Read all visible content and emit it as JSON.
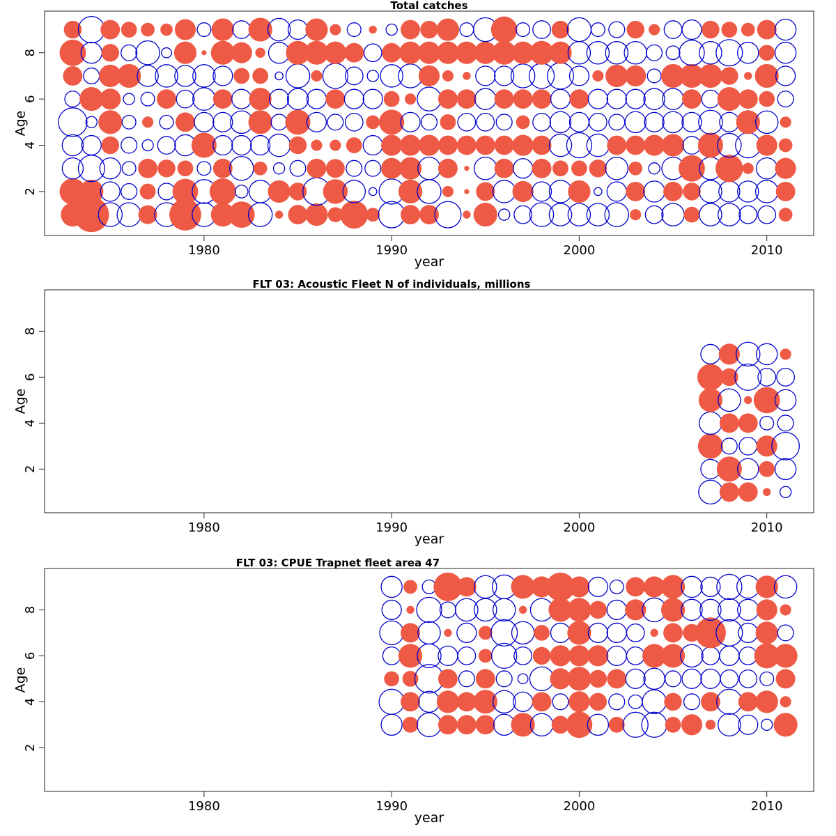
{
  "colors": {
    "positive": "#EE5A45",
    "negative": "#0000CC"
  },
  "chart_data": [
    {
      "type": "scatter",
      "subtype": "bubble",
      "title": "Total catches",
      "xlabel": "year",
      "ylabel": "Age",
      "x_ticks": [
        1980,
        1990,
        2000,
        2010
      ],
      "y_ticks": [
        2,
        4,
        6,
        8
      ],
      "xlim": [
        1971.5,
        2012.5
      ],
      "ylim": [
        0.1,
        9.8
      ],
      "x": [
        1973,
        1974,
        1975,
        1976,
        1977,
        1978,
        1979,
        1980,
        1981,
        1982,
        1983,
        1984,
        1985,
        1986,
        1987,
        1988,
        1989,
        1990,
        1991,
        1992,
        1993,
        1994,
        1995,
        1996,
        1997,
        1998,
        1999,
        2000,
        2001,
        2002,
        2003,
        2004,
        2005,
        2006,
        2007,
        2008,
        2009,
        2010,
        2011
      ],
      "ages": [
        1,
        2,
        3,
        4,
        5,
        6,
        7,
        8,
        9
      ],
      "values": {
        "1": [
          0.45,
          0.97,
          -0.45,
          -0.45,
          0.28,
          -0.45,
          0.8,
          -0.45,
          0.45,
          0.55,
          -0.45,
          0.05,
          0.3,
          0.4,
          0.18,
          0.62,
          0.15,
          -0.55,
          0.3,
          0.3,
          -0.55,
          0.05,
          0.45,
          -0.1,
          -0.25,
          -0.45,
          -0.4,
          -0.4,
          -0.4,
          -0.45,
          0.1,
          -0.25,
          -0.4,
          0.2,
          -0.4,
          -0.4,
          -0.25,
          -0.25,
          0.15
        ],
        "2": [
          0.55,
          0.45,
          -0.3,
          -0.2,
          0.2,
          -0.22,
          0.52,
          -0.45,
          0.55,
          -0.13,
          -0.4,
          0.4,
          0.25,
          -0.6,
          0.48,
          -0.4,
          -0.05,
          -0.5,
          0.45,
          -0.45,
          0.1,
          0.02,
          0.28,
          -0.4,
          0.35,
          -0.3,
          -0.4,
          0.4,
          -0.05,
          -0.3,
          0.3,
          -0.35,
          0.3,
          0.25,
          -0.4,
          -0.35,
          -0.35,
          -0.4,
          0.3
        ],
        "3": [
          -0.35,
          -0.55,
          -0.35,
          -0.15,
          0.3,
          0.25,
          0.2,
          -0.15,
          0.3,
          -0.45,
          0.15,
          -0.1,
          -0.2,
          0.3,
          0.28,
          -0.2,
          -0.2,
          0.35,
          0.4,
          -0.4,
          0.3,
          0.02,
          -0.4,
          0.3,
          -0.3,
          0.3,
          0.2,
          0.2,
          0.25,
          -0.4,
          0.15,
          -0.1,
          -0.4,
          0.55,
          -0.4,
          0.6,
          0.1,
          -0.35,
          0.35
        ],
        "4": [
          -0.35,
          -0.3,
          0.25,
          -0.2,
          -0.1,
          -0.25,
          -0.35,
          0.5,
          -0.3,
          -0.3,
          -0.3,
          -0.4,
          0.25,
          0.1,
          0.1,
          0.2,
          -0.3,
          0.35,
          0.35,
          0.35,
          0.3,
          0.3,
          0.3,
          0.3,
          0.35,
          0.3,
          -0.4,
          -0.5,
          -0.4,
          0.3,
          0.3,
          0.35,
          0.4,
          -0.25,
          0.5,
          -0.45,
          -0.5,
          0.35,
          0.15
        ],
        "5": [
          -0.65,
          -0.1,
          0.45,
          -0.15,
          0.1,
          -0.15,
          0.3,
          -0.3,
          -0.3,
          -0.4,
          0.45,
          -0.2,
          0.5,
          -0.3,
          -0.2,
          -0.25,
          0.15,
          0.5,
          -0.3,
          -0.2,
          0.2,
          -0.25,
          -0.25,
          -0.2,
          0.15,
          -0.25,
          -0.35,
          -0.3,
          -0.25,
          -0.2,
          -0.35,
          -0.3,
          -0.35,
          -0.3,
          -0.45,
          -0.3,
          0.45,
          -0.4,
          0.1
        ],
        "6": [
          -0.2,
          0.45,
          0.35,
          -0.1,
          -0.15,
          0.3,
          -0.25,
          -0.4,
          0.3,
          -0.3,
          0.4,
          -0.3,
          -0.35,
          -0.3,
          0.3,
          -0.3,
          -0.3,
          0.2,
          0.1,
          -0.45,
          0.3,
          0.3,
          -0.35,
          0.3,
          0.3,
          0.3,
          -0.3,
          0.3,
          -0.3,
          -0.3,
          -0.3,
          -0.35,
          -0.35,
          0.3,
          -0.25,
          0.45,
          0.3,
          0.2,
          -0.2
        ],
        "7": [
          0.3,
          -0.2,
          0.4,
          0.45,
          -0.35,
          -0.4,
          -0.35,
          -0.4,
          -0.3,
          0.2,
          0.2,
          -0.05,
          -0.45,
          0.1,
          -0.5,
          -0.25,
          -0.1,
          -0.4,
          -0.45,
          0.35,
          0.1,
          0.05,
          -0.3,
          -0.3,
          -0.45,
          -0.5,
          -0.55,
          -0.3,
          0.1,
          0.4,
          0.35,
          -0.15,
          0.45,
          0.45,
          0.45,
          0.25,
          0.05,
          0.45,
          -0.3
        ],
        "8": [
          0.55,
          -0.35,
          0.25,
          -0.2,
          -0.45,
          -0.08,
          0.4,
          0.02,
          0.45,
          0.35,
          0.08,
          -0.35,
          0.45,
          0.45,
          0.4,
          0.3,
          -0.25,
          0.3,
          0.4,
          0.4,
          0.4,
          0.4,
          0.4,
          0.45,
          0.4,
          0.45,
          0.4,
          -0.4,
          -0.4,
          -0.4,
          -0.4,
          -0.2,
          -0.15,
          -0.5,
          -0.4,
          -0.55,
          -0.35,
          0.2,
          -0.35
        ],
        "9": [
          0.25,
          -0.55,
          0.3,
          0.2,
          0.15,
          0.12,
          0.35,
          -0.15,
          0.4,
          -0.25,
          0.45,
          -0.4,
          -0.3,
          0.4,
          0.1,
          -0.15,
          0.05,
          -0.1,
          0.3,
          0.25,
          0.4,
          -0.15,
          -0.45,
          0.55,
          -0.15,
          -0.25,
          0.25,
          -0.45,
          -0.15,
          -0.2,
          0.25,
          0.1,
          -0.25,
          -0.3,
          0.25,
          0.2,
          0.15,
          0.3,
          -0.35
        ]
      }
    },
    {
      "type": "scatter",
      "subtype": "bubble",
      "title": "FLT 03: Acoustic Fleet  N of individuals, millions",
      "xlabel": "year",
      "ylabel": "Age",
      "x_ticks": [
        1980,
        1990,
        2000,
        2010
      ],
      "y_ticks": [
        2,
        4,
        6,
        8
      ],
      "xlim": [
        1971.5,
        2012.5
      ],
      "ylim": [
        0.1,
        9.8
      ],
      "x": [
        2007,
        2008,
        2009,
        2010,
        2011
      ],
      "ages": [
        1,
        2,
        3,
        4,
        5,
        6,
        7
      ],
      "values": {
        "1": [
          -0.45,
          0.3,
          0.3,
          0.05,
          -0.1
        ],
        "2": [
          -0.3,
          0.5,
          -0.35,
          0.2,
          -0.35
        ],
        "3": [
          0.5,
          -0.2,
          -0.25,
          0.35,
          -0.6
        ],
        "4": [
          -0.4,
          0.3,
          0.3,
          -0.15,
          -0.2
        ],
        "5": [
          0.45,
          -0.4,
          0.05,
          0.55,
          -0.35
        ],
        "6": [
          0.55,
          0.25,
          -0.55,
          -0.25,
          -0.25
        ],
        "7": [
          -0.3,
          0.35,
          -0.45,
          -0.35,
          0.1
        ]
      }
    },
    {
      "type": "scatter",
      "subtype": "bubble",
      "title": "FLT 03: CPUE Trapnet fleet area 47",
      "xlabel": "year",
      "ylabel": "Age",
      "x_ticks": [
        1980,
        1990,
        2000,
        2010
      ],
      "y_ticks": [
        2,
        4,
        6,
        8
      ],
      "xlim": [
        1971.5,
        2012.5
      ],
      "ylim": [
        0.1,
        9.8
      ],
      "x": [
        1990,
        1991,
        1992,
        1993,
        1994,
        1995,
        1996,
        1997,
        1998,
        1999,
        2000,
        2001,
        2002,
        2003,
        2004,
        2005,
        2006,
        2007,
        2008,
        2009,
        2010,
        2011
      ],
      "ages": [
        3,
        4,
        5,
        6,
        7,
        8,
        9
      ],
      "values": {
        "3": [
          -0.35,
          0.2,
          -0.45,
          0.3,
          0.3,
          0.3,
          -0.35,
          0.45,
          -0.4,
          0.25,
          0.55,
          -0.35,
          0.2,
          -0.5,
          -0.5,
          0.2,
          0.35,
          0.08,
          -0.4,
          -0.3,
          -0.1,
          0.45
        ],
        "4": [
          -0.5,
          0.3,
          -0.35,
          0.4,
          0.3,
          0.45,
          -0.4,
          -0.3,
          0.3,
          -0.2,
          0.35,
          0.25,
          -0.2,
          -0.15,
          -0.45,
          0.25,
          -0.2,
          0.3,
          -0.5,
          0.3,
          0.4,
          0.1
        ],
        "5": [
          0.18,
          0.2,
          -0.65,
          0.3,
          -0.2,
          0.3,
          -0.2,
          -0.08,
          -0.45,
          0.35,
          0.45,
          0.25,
          0.3,
          -0.3,
          -0.35,
          -0.2,
          -0.3,
          -0.3,
          -0.25,
          -0.25,
          -0.15,
          0.3
        ],
        "6": [
          -0.25,
          0.45,
          -0.45,
          -0.3,
          -0.25,
          0.15,
          -0.5,
          -0.25,
          0.25,
          0.35,
          0.35,
          0.35,
          -0.3,
          -0.25,
          0.45,
          0.45,
          -0.4,
          -0.25,
          -0.3,
          -0.25,
          0.5,
          0.45
        ],
        "7": [
          -0.45,
          0.3,
          -0.4,
          0.05,
          -0.3,
          0.15,
          -0.55,
          -0.4,
          0.2,
          -0.3,
          0.45,
          -0.3,
          -0.3,
          -0.25,
          0.05,
          0.3,
          0.25,
          0.75,
          -0.55,
          -0.3,
          0.4,
          -0.2
        ],
        "8": [
          -0.3,
          0.05,
          -0.5,
          -0.2,
          -0.4,
          -0.4,
          -0.4,
          0.05,
          -0.4,
          0.45,
          0.45,
          0.25,
          -0.3,
          0.35,
          -0.45,
          0.45,
          -0.35,
          -0.35,
          -0.4,
          -0.35,
          0.35,
          0.1
        ],
        "9": [
          -0.35,
          0.15,
          -0.15,
          0.65,
          0.3,
          -0.4,
          -0.45,
          0.45,
          0.35,
          0.65,
          0.35,
          -0.3,
          -0.15,
          0.3,
          0.35,
          0.45,
          -0.35,
          -0.3,
          -0.5,
          -0.4,
          0.4,
          -0.4
        ]
      }
    }
  ]
}
